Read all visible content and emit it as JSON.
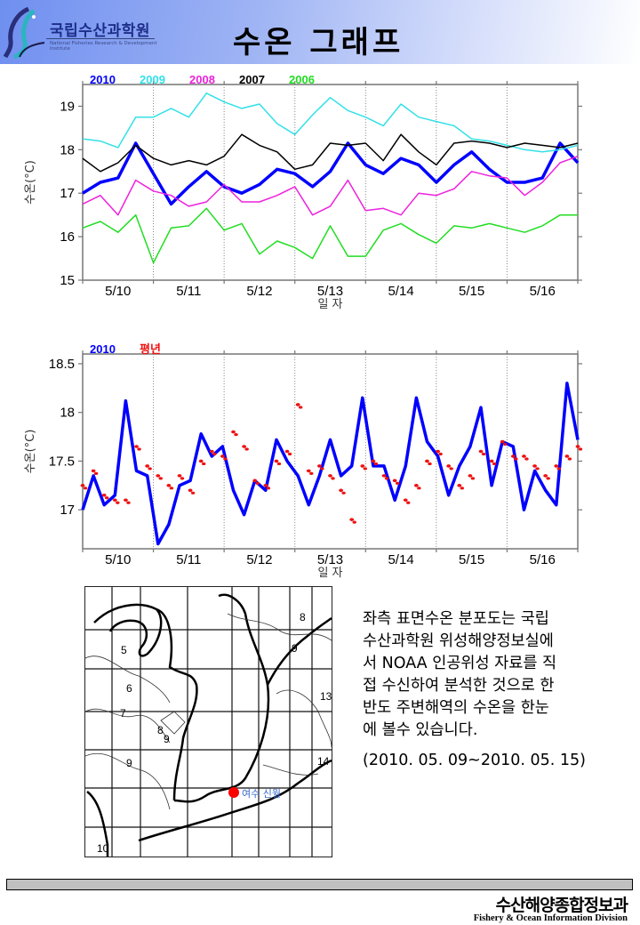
{
  "header": {
    "org_name_kr": "국립수산과학원",
    "org_name_en": "National Fisheries Research & Development Institute",
    "page_title": "수온 그래프"
  },
  "chart_data": [
    {
      "type": "line",
      "title": "",
      "xlabel": "일 자",
      "ylabel": "수온(°C)",
      "ylim": [
        15,
        19.5
      ],
      "yticks": [
        15,
        16,
        17,
        18,
        19
      ],
      "x_tick_labels": [
        "5/10",
        "5/11",
        "5/12",
        "5/13",
        "5/14",
        "5/15",
        "5/16"
      ],
      "x_range_days": [
        "5/10 00:00",
        "5/17 00:00"
      ],
      "x_step_hours": 6,
      "grid": "vertical dotted day separators",
      "legend_position": "top-left",
      "series": [
        {
          "name": "2010",
          "color": "#0000ff",
          "width": "bold",
          "values": [
            17.0,
            17.25,
            17.35,
            18.15,
            17.45,
            16.75,
            17.15,
            17.5,
            17.15,
            17.0,
            17.2,
            17.55,
            17.45,
            17.15,
            17.5,
            18.15,
            17.65,
            17.45,
            17.8,
            17.65,
            17.25,
            17.65,
            17.95,
            17.55,
            17.25,
            17.25,
            17.35,
            18.15,
            17.7
          ]
        },
        {
          "name": "2009",
          "color": "#33e0e8",
          "values": [
            18.25,
            18.2,
            18.05,
            18.75,
            18.75,
            18.95,
            18.75,
            19.3,
            19.1,
            18.95,
            19.05,
            18.6,
            18.35,
            18.8,
            19.2,
            18.9,
            18.75,
            18.55,
            19.05,
            18.75,
            18.65,
            18.55,
            18.25,
            18.2,
            18.1,
            18.0,
            17.95,
            18.0,
            18.1
          ]
        },
        {
          "name": "2008",
          "color": "#ee22dd",
          "values": [
            16.75,
            16.95,
            16.5,
            17.3,
            17.05,
            16.95,
            16.7,
            16.8,
            17.2,
            16.8,
            16.8,
            16.95,
            17.15,
            16.5,
            16.7,
            17.3,
            16.6,
            16.65,
            16.5,
            17.0,
            16.95,
            17.1,
            17.5,
            17.4,
            17.35,
            16.95,
            17.25,
            17.7,
            17.85
          ]
        },
        {
          "name": "2007",
          "color": "#000000",
          "values": [
            17.8,
            17.5,
            17.7,
            18.1,
            17.8,
            17.65,
            17.75,
            17.65,
            17.85,
            18.35,
            18.1,
            17.95,
            17.55,
            17.65,
            18.15,
            18.1,
            18.15,
            17.75,
            18.35,
            17.95,
            17.65,
            18.15,
            18.2,
            18.15,
            18.05,
            18.15,
            18.1,
            18.05,
            18.15
          ]
        },
        {
          "name": "2006",
          "color": "#22dd22",
          "values": [
            16.2,
            16.35,
            16.1,
            16.5,
            15.4,
            16.2,
            16.25,
            16.65,
            16.15,
            16.3,
            15.6,
            15.9,
            15.75,
            15.5,
            16.25,
            15.55,
            15.55,
            16.15,
            16.3,
            16.05,
            15.85,
            16.25,
            16.2,
            16.3,
            16.2,
            16.1,
            16.25,
            16.5,
            16.5
          ]
        }
      ]
    },
    {
      "type": "line",
      "title": "",
      "xlabel": "일 자",
      "ylabel": "수온(°C)",
      "ylim": [
        16.6,
        18.6
      ],
      "yticks": [
        17,
        17.5,
        18,
        18.5
      ],
      "x_tick_labels": [
        "5/10",
        "5/11",
        "5/12",
        "5/13",
        "5/14",
        "5/15",
        "5/16"
      ],
      "x_range_days": [
        "5/10 00:00",
        "5/17 00:00"
      ],
      "x_step_hours": 6,
      "grid": "vertical dotted day separators",
      "legend_position": "top-left",
      "series": [
        {
          "name": "2010",
          "color": "#0000ff",
          "style": "line",
          "values": [
            17.0,
            17.35,
            17.05,
            17.15,
            18.12,
            17.4,
            17.35,
            16.65,
            16.85,
            17.25,
            17.3,
            17.78,
            17.55,
            17.65,
            17.2,
            16.95,
            17.3,
            17.2,
            17.72,
            17.5,
            17.35,
            17.05,
            17.35,
            17.72,
            17.35,
            17.45,
            18.15,
            17.45,
            17.45,
            17.1,
            17.45,
            18.15,
            17.7,
            17.55,
            17.15,
            17.45,
            17.65,
            18.05,
            17.25,
            17.7,
            17.65,
            17.0,
            17.4,
            17.2,
            17.05,
            18.3,
            17.72
          ]
        },
        {
          "name": "평년",
          "color": "#ee1111",
          "style": "dots",
          "values": [
            17.25,
            17.4,
            17.15,
            17.1,
            17.1,
            17.65,
            17.45,
            17.35,
            17.25,
            17.35,
            17.2,
            17.5,
            17.6,
            17.55,
            17.8,
            17.65,
            17.3,
            17.25,
            17.5,
            17.6,
            18.08,
            17.4,
            17.45,
            17.35,
            17.2,
            16.9,
            17.45,
            17.5,
            17.35,
            17.3,
            17.1,
            17.25,
            17.5,
            17.6,
            17.45,
            17.25,
            17.35,
            17.6,
            17.5,
            17.7,
            17.55,
            17.55,
            17.45,
            17.35,
            17.45,
            17.55,
            17.65
          ]
        }
      ]
    }
  ],
  "map": {
    "contour_labels": [
      "5",
      "6",
      "7",
      "8",
      "9",
      "9",
      "10",
      "8",
      "9",
      "13",
      "14"
    ],
    "marker_label": "여수 신월",
    "marker_color": "#ff0000"
  },
  "description": {
    "lines": [
      "좌측 표면수온 분포도는 국립",
      "수산과학원 위성해양정보실에",
      "서 NOAA 인공위성 자료를 직",
      "접 수신하여 분석한 것으로 한",
      "반도 주변해역의 수온을 한눈",
      "에 볼수 있습니다."
    ],
    "date_range": "(2010. 05. 09~2010. 05. 15)"
  },
  "footer": {
    "division_kr": "수산해양종합정보과",
    "division_en": "Fishery & Ocean Information Division"
  }
}
